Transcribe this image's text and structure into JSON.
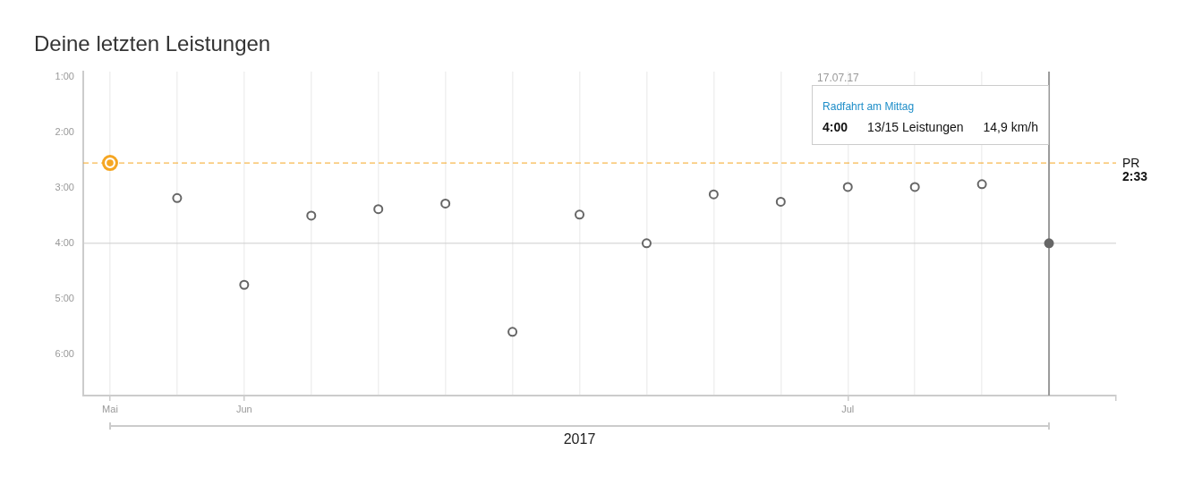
{
  "chart_data": {
    "type": "scatter",
    "title": "Deine letzten Leistungen",
    "xlabel": "2017",
    "categories": [
      "Mai",
      null,
      "Jun",
      null,
      null,
      null,
      null,
      null,
      null,
      null,
      null,
      "Jul",
      null,
      null,
      null
    ],
    "series": [
      {
        "color": "#666666",
        "values": [
          null,
          191,
          285,
          210,
          203,
          197,
          336,
          209,
          240,
          187,
          195,
          179,
          179,
          176,
          null
        ]
      },
      {
        "color": "#f5a623",
        "values": [
          153,
          null,
          null,
          null,
          null,
          null,
          null,
          null,
          null,
          null,
          null,
          null,
          null,
          null,
          null
        ]
      },
      {
        "color": "#666666",
        "values": [
          null,
          null,
          null,
          null,
          null,
          null,
          null,
          null,
          null,
          null,
          null,
          null,
          null,
          null,
          240
        ]
      }
    ],
    "ylim": [
      405,
      54
    ],
    "yticks": [
      {
        "value": 60,
        "label": "1:00"
      },
      {
        "value": 120,
        "label": "2:00"
      },
      {
        "value": 180,
        "label": "3:00"
      },
      {
        "value": 240,
        "label": "4:00"
      },
      {
        "value": 300,
        "label": "5:00"
      },
      {
        "value": 360,
        "label": "6:00"
      }
    ],
    "grid": "x",
    "marker": "circle",
    "ref_lines": [
      {
        "axis": "y",
        "value": 153,
        "label": "PR",
        "color": "#f5a623",
        "line_style": "dashed"
      },
      {
        "axis": "y",
        "value": 240,
        "color": "#cccccc",
        "line_style": "solid"
      }
    ],
    "annotations": [
      "2:33",
      "17.07.17",
      "Radfahrt am Mittag",
      "4:00",
      "13/15 Leistungen",
      "14,9 km/h"
    ]
  }
}
